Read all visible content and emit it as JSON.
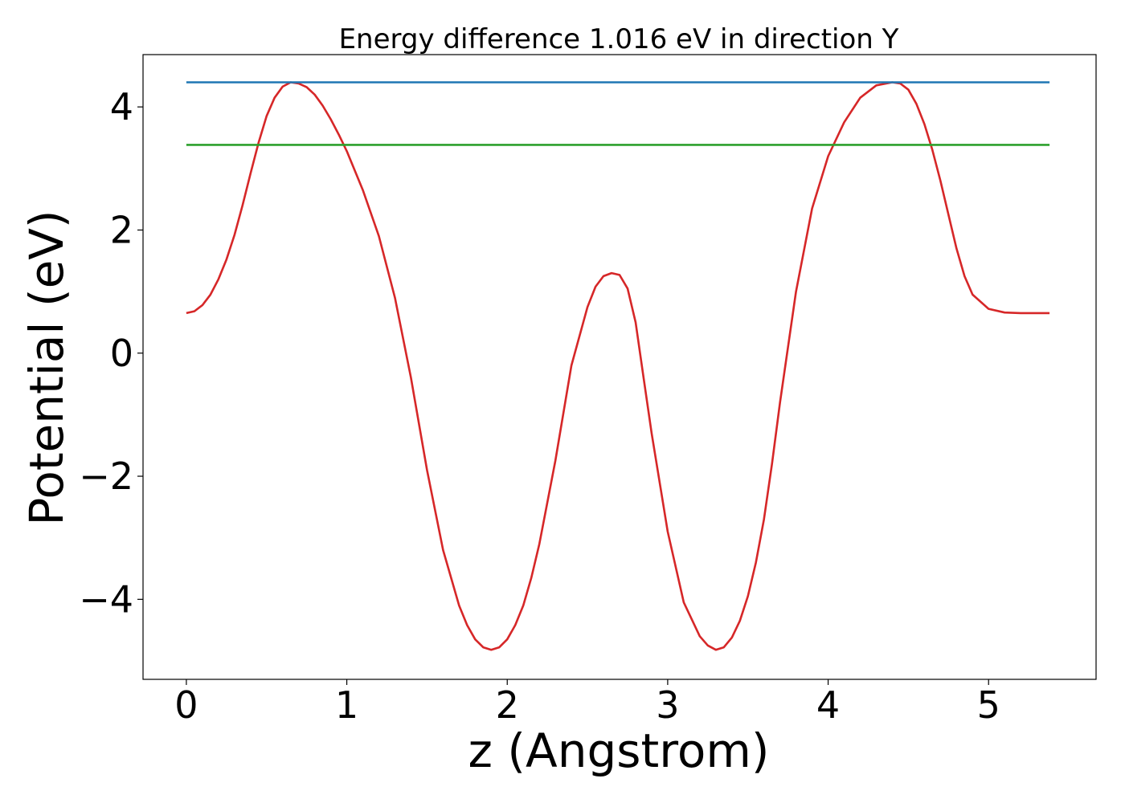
{
  "chart_data": {
    "type": "line",
    "title": "Energy difference 1.016 eV in direction Y",
    "xlabel": "z (Angstrom)",
    "ylabel": "Potential (eV)",
    "xlim": [
      -0.27,
      5.67
    ],
    "ylim": [
      -5.3,
      4.85
    ],
    "xticks": [
      0,
      1,
      2,
      3,
      4,
      5
    ],
    "xtick_labels": [
      "0",
      "1",
      "2",
      "3",
      "4",
      "5"
    ],
    "yticks": [
      -4,
      -2,
      0,
      2,
      4
    ],
    "ytick_labels": [
      "−4",
      "−2",
      "0",
      "2",
      "4"
    ],
    "grid": false,
    "series": [
      {
        "color": "#d62728",
        "x": [
          0,
          0.05,
          0.1,
          0.15,
          0.2,
          0.25,
          0.3,
          0.35,
          0.4,
          0.45,
          0.5,
          0.55,
          0.6,
          0.65,
          0.7,
          0.75,
          0.8,
          0.85,
          0.9,
          0.95,
          1.0,
          1.1,
          1.2,
          1.3,
          1.4,
          1.5,
          1.6,
          1.7,
          1.75,
          1.8,
          1.85,
          1.9,
          1.95,
          2.0,
          2.05,
          2.1,
          2.15,
          2.2,
          2.3,
          2.4,
          2.5,
          2.55,
          2.6,
          2.65,
          2.7,
          2.75,
          2.8,
          2.85,
          2.9,
          3.0,
          3.1,
          3.2,
          3.25,
          3.3,
          3.35,
          3.4,
          3.45,
          3.5,
          3.55,
          3.6,
          3.65,
          3.7,
          3.8,
          3.9,
          4.0,
          4.1,
          4.2,
          4.3,
          4.4,
          4.45,
          4.5,
          4.55,
          4.6,
          4.65,
          4.7,
          4.75,
          4.8,
          4.85,
          4.9,
          5.0,
          5.1,
          5.2,
          5.3,
          5.38
        ],
        "y": [
          0.65,
          0.68,
          0.78,
          0.95,
          1.2,
          1.52,
          1.92,
          2.4,
          2.92,
          3.42,
          3.85,
          4.15,
          4.33,
          4.4,
          4.38,
          4.32,
          4.2,
          4.02,
          3.8,
          3.55,
          3.28,
          2.65,
          1.9,
          0.9,
          -0.4,
          -1.9,
          -3.2,
          -4.1,
          -4.42,
          -4.65,
          -4.78,
          -4.82,
          -4.78,
          -4.65,
          -4.42,
          -4.1,
          -3.65,
          -3.1,
          -1.75,
          -0.2,
          0.75,
          1.08,
          1.25,
          1.3,
          1.27,
          1.05,
          0.5,
          -0.4,
          -1.3,
          -2.9,
          -4.05,
          -4.6,
          -4.75,
          -4.82,
          -4.78,
          -4.62,
          -4.35,
          -3.95,
          -3.4,
          -2.7,
          -1.8,
          -0.8,
          1.0,
          2.35,
          3.2,
          3.75,
          4.15,
          4.35,
          4.4,
          4.38,
          4.28,
          4.05,
          3.72,
          3.3,
          2.8,
          2.25,
          1.7,
          1.25,
          0.95,
          0.72,
          0.66,
          0.65,
          0.65,
          0.65
        ]
      },
      {
        "color": "#1f77b4",
        "x": [
          0,
          5.38
        ],
        "y": [
          4.4,
          4.4
        ]
      },
      {
        "color": "#2ca02c",
        "x": [
          0,
          5.38
        ],
        "y": [
          3.384,
          3.384
        ]
      }
    ]
  }
}
